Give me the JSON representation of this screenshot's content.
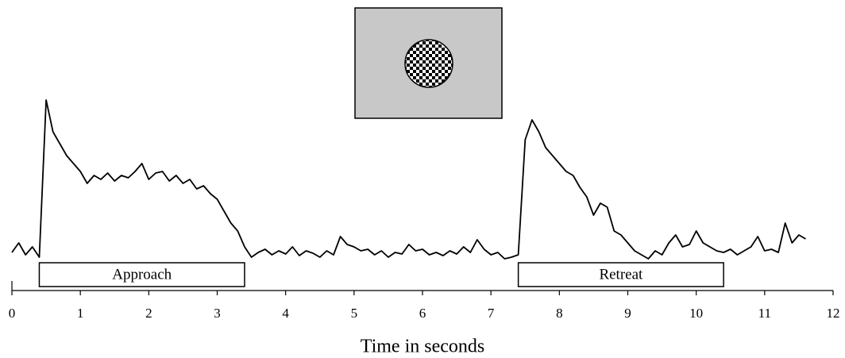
{
  "chart_data": {
    "type": "line",
    "xlabel": "Time in seconds",
    "xlim": [
      0,
      12
    ],
    "xticks": [
      0,
      1,
      2,
      3,
      4,
      5,
      6,
      7,
      8,
      9,
      10,
      11,
      12
    ],
    "ylim": [
      0,
      260
    ],
    "color": "#000000",
    "annotations": [
      {
        "label": "Approach",
        "start": 0.4,
        "end": 3.4
      },
      {
        "label": "Retreat",
        "start": 7.4,
        "end": 10.4
      }
    ],
    "x": [
      0,
      0.1,
      0.2,
      0.3,
      0.4,
      0.5,
      0.6,
      0.7,
      0.8,
      0.9,
      1,
      1.1,
      1.2,
      1.3,
      1.4,
      1.5,
      1.6,
      1.7,
      1.8,
      1.9,
      2,
      2.1,
      2.2,
      2.3,
      2.4,
      2.5,
      2.6,
      2.7,
      2.8,
      2.9,
      3,
      3.1,
      3.2,
      3.3,
      3.4,
      3.5,
      3.6,
      3.7,
      3.8,
      3.9,
      4,
      4.1,
      4.2,
      4.3,
      4.4,
      4.5,
      4.6,
      4.7,
      4.8,
      4.9,
      5,
      5.1,
      5.2,
      5.3,
      5.4,
      5.5,
      5.6,
      5.7,
      5.8,
      5.9,
      6,
      6.1,
      6.2,
      6.3,
      6.4,
      6.5,
      6.6,
      6.7,
      6.8,
      6.9,
      7,
      7.1,
      7.2,
      7.3,
      7.4,
      7.5,
      7.6,
      7.7,
      7.8,
      7.9,
      8,
      8.1,
      8.2,
      8.3,
      8.4,
      8.5,
      8.6,
      8.7,
      8.8,
      8.9,
      9,
      9.1,
      9.2,
      9.3,
      9.4,
      9.5,
      9.6,
      9.7,
      9.8,
      9.9,
      10,
      10.1,
      10.2,
      10.3,
      10.4,
      10.5,
      10.6,
      10.7,
      10.8,
      10.9,
      11,
      11.1,
      11.2,
      11.3,
      11.4,
      11.5,
      11.6
    ],
    "values": [
      48,
      60,
      45,
      55,
      42,
      240,
      200,
      185,
      170,
      160,
      150,
      135,
      145,
      140,
      148,
      138,
      145,
      142,
      150,
      160,
      140,
      148,
      150,
      138,
      145,
      135,
      140,
      128,
      132,
      122,
      115,
      100,
      85,
      75,
      55,
      42,
      48,
      52,
      45,
      50,
      46,
      55,
      44,
      50,
      47,
      42,
      50,
      45,
      68,
      58,
      55,
      50,
      52,
      45,
      50,
      42,
      48,
      46,
      58,
      50,
      52,
      45,
      48,
      44,
      50,
      46,
      55,
      48,
      64,
      52,
      45,
      48,
      40,
      42,
      45,
      190,
      215,
      200,
      180,
      170,
      160,
      150,
      145,
      130,
      118,
      95,
      110,
      105,
      75,
      70,
      60,
      50,
      45,
      40,
      50,
      45,
      60,
      70,
      55,
      58,
      75,
      60,
      55,
      50,
      48,
      52,
      45,
      50,
      55,
      68,
      50,
      52,
      48,
      85,
      60,
      70,
      65
    ]
  }
}
